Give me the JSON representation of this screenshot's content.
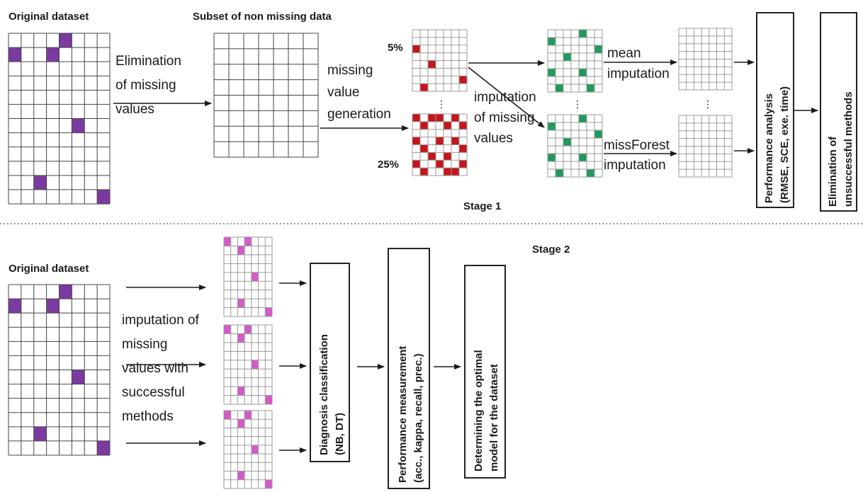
{
  "stage1": {
    "original_dataset_label": "Original dataset",
    "subset_label": "Subset of non missing data",
    "elimination_lines": [
      "Elimination",
      "of missing",
      "values"
    ],
    "generation_lines": [
      "missing",
      "value",
      "generation"
    ],
    "pct_low": "5%",
    "pct_high": "25%",
    "imputation_lines": [
      "imputation",
      "of missing",
      "values"
    ],
    "mean_lines": [
      "mean",
      "imputation"
    ],
    "missforest_lines": [
      "missForest",
      "imputation"
    ],
    "performance_analysis_lines": [
      "Performance analysis",
      "(RMSE, SCE, exe. time)"
    ],
    "elimination_methods_lines": [
      "Elimination of",
      "unsuccessful methods"
    ],
    "stage_label": "Stage 1"
  },
  "stage2": {
    "original_dataset_label": "Original dataset",
    "stage_label": "Stage 2",
    "imputation_lines": [
      "imputation of",
      "missing",
      "values with",
      "successful",
      "methods"
    ],
    "diagnosis_lines": [
      "Diagnosis classification",
      "(NB, DT)"
    ],
    "performance_lines": [
      "Performance measurement",
      "(acc., kappa, recall, prec.)"
    ],
    "optimal_lines": [
      "Determining the optimal",
      "model for the dataset"
    ]
  },
  "colors": {
    "purple": "#7b3aa0",
    "red": "#c4161c",
    "green": "#1f9a5c",
    "pink": "#d45ac9",
    "grid": "#444444",
    "grid_light": "#9a9a9a"
  }
}
